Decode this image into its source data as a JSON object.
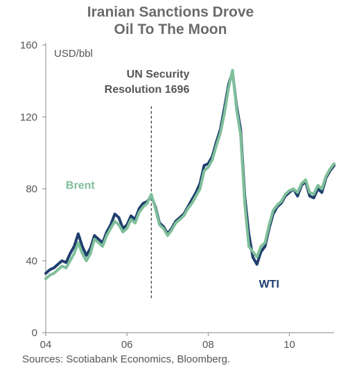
{
  "title_line1": "Iranian Sanctions Drove",
  "title_line2": "Oil To The Moon",
  "source": "Sources: Scotiabank Economics, Bloomberg.",
  "chart_data": {
    "type": "line",
    "title": "Iranian Sanctions Drove Oil To The Moon",
    "ylabel": "USD/bbl",
    "xlabel": "",
    "ylim": [
      0,
      160
    ],
    "xlim": [
      2004,
      2011.1
    ],
    "yticks": [
      "0",
      "40",
      "80",
      "120",
      "160"
    ],
    "xticks": [
      {
        "value": 2004,
        "label": "04"
      },
      {
        "value": 2006,
        "label": "06"
      },
      {
        "value": 2008,
        "label": "08"
      },
      {
        "value": 2010,
        "label": "10"
      }
    ],
    "grid": false,
    "annotation": {
      "label_line1": "UN Security",
      "label_line2": "Resolution 1696",
      "x": 2006.6
    },
    "colors": {
      "Brent": "#7fbf9a",
      "WTI": "#1f3f6e"
    },
    "series": [
      {
        "name": "WTI",
        "x": [
          2004.0,
          2004.1,
          2004.2,
          2004.3,
          2004.4,
          2004.5,
          2004.6,
          2004.7,
          2004.8,
          2004.9,
          2005.0,
          2005.1,
          2005.2,
          2005.3,
          2005.4,
          2005.5,
          2005.6,
          2005.7,
          2005.8,
          2005.9,
          2006.0,
          2006.1,
          2006.2,
          2006.3,
          2006.4,
          2006.5,
          2006.6,
          2006.7,
          2006.8,
          2006.9,
          2007.0,
          2007.1,
          2007.2,
          2007.3,
          2007.4,
          2007.5,
          2007.6,
          2007.7,
          2007.8,
          2007.9,
          2008.0,
          2008.1,
          2008.2,
          2008.3,
          2008.4,
          2008.5,
          2008.6,
          2008.7,
          2008.8,
          2008.9,
          2009.0,
          2009.1,
          2009.2,
          2009.3,
          2009.4,
          2009.5,
          2009.6,
          2009.7,
          2009.8,
          2009.9,
          2010.0,
          2010.1,
          2010.2,
          2010.3,
          2010.4,
          2010.5,
          2010.6,
          2010.7,
          2010.8,
          2010.9,
          2011.0,
          2011.1
        ],
        "values": [
          33,
          35,
          36,
          38,
          40,
          39,
          44,
          48,
          55,
          48,
          43,
          47,
          54,
          52,
          50,
          56,
          60,
          66,
          64,
          58,
          60,
          65,
          63,
          69,
          72,
          73,
          76,
          70,
          61,
          59,
          55,
          58,
          62,
          64,
          66,
          70,
          74,
          78,
          83,
          93,
          94,
          98,
          106,
          113,
          125,
          138,
          145,
          126,
          113,
          76,
          55,
          42,
          38,
          45,
          48,
          58,
          66,
          70,
          72,
          76,
          78,
          80,
          76,
          82,
          84,
          76,
          75,
          80,
          78,
          86,
          90,
          93
        ]
      },
      {
        "name": "Brent",
        "x": [
          2004.0,
          2004.1,
          2004.2,
          2004.3,
          2004.4,
          2004.5,
          2004.6,
          2004.7,
          2004.8,
          2004.9,
          2005.0,
          2005.1,
          2005.2,
          2005.3,
          2005.4,
          2005.5,
          2005.6,
          2005.7,
          2005.8,
          2005.9,
          2006.0,
          2006.1,
          2006.2,
          2006.3,
          2006.4,
          2006.5,
          2006.6,
          2006.7,
          2006.8,
          2006.9,
          2007.0,
          2007.1,
          2007.2,
          2007.3,
          2007.4,
          2007.5,
          2007.6,
          2007.7,
          2007.8,
          2007.9,
          2008.0,
          2008.1,
          2008.2,
          2008.3,
          2008.4,
          2008.5,
          2008.6,
          2008.7,
          2008.8,
          2008.9,
          2009.0,
          2009.1,
          2009.2,
          2009.3,
          2009.4,
          2009.5,
          2009.6,
          2009.7,
          2009.8,
          2009.9,
          2010.0,
          2010.1,
          2010.2,
          2010.3,
          2010.4,
          2010.5,
          2010.6,
          2010.7,
          2010.8,
          2010.9,
          2011.0,
          2011.1
        ],
        "values": [
          30,
          32,
          33,
          35,
          37,
          36,
          40,
          44,
          50,
          44,
          40,
          44,
          52,
          50,
          48,
          54,
          58,
          62,
          60,
          56,
          58,
          63,
          61,
          67,
          70,
          72,
          77,
          69,
          60,
          58,
          54,
          57,
          61,
          63,
          65,
          69,
          72,
          76,
          80,
          90,
          92,
          96,
          104,
          111,
          122,
          136,
          146,
          124,
          110,
          72,
          48,
          45,
          42,
          48,
          50,
          60,
          68,
          71,
          73,
          77,
          79,
          80,
          78,
          83,
          85,
          78,
          77,
          82,
          80,
          87,
          91,
          94
        ]
      }
    ],
    "series_labels": [
      {
        "series": "Brent",
        "text": "Brent",
        "at": [
          2004.85,
          80
        ]
      },
      {
        "series": "WTI",
        "text": "WTI",
        "at": [
          2009.5,
          25
        ]
      }
    ]
  }
}
